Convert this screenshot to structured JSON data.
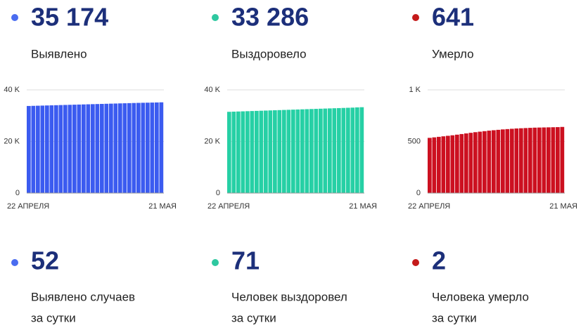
{
  "chart_data": [
    {
      "type": "bar",
      "headline": "35 174",
      "caption": "Выявлено",
      "color": "#3b5bf0",
      "dot_color": "#4a6cf0",
      "categories": [
        "22 АПРЕЛЯ",
        null,
        null,
        null,
        null,
        null,
        null,
        null,
        null,
        null,
        null,
        null,
        null,
        null,
        null,
        null,
        null,
        null,
        null,
        null,
        null,
        null,
        null,
        null,
        null,
        null,
        null,
        null,
        null,
        "21 МАЯ"
      ],
      "values": [
        33760,
        33810,
        33860,
        33910,
        33960,
        34010,
        34060,
        34110,
        34160,
        34210,
        34260,
        34310,
        34360,
        34410,
        34460,
        34510,
        34560,
        34610,
        34660,
        34710,
        34760,
        34810,
        34860,
        34910,
        34960,
        35000,
        35040,
        35080,
        35122,
        35174
      ],
      "ylim": [
        0,
        40000
      ],
      "yticks": [
        0,
        {
          "value": 20000,
          "label": "20 K"
        },
        {
          "value": 40000,
          "label": "40 K"
        }
      ],
      "grid": true
    },
    {
      "type": "bar",
      "headline": "33 286",
      "caption": "Выздоровело",
      "color": "#26d0a5",
      "dot_color": "#2ec8a0",
      "categories": [
        "22 АПРЕЛЯ",
        null,
        null,
        null,
        null,
        null,
        null,
        null,
        null,
        null,
        null,
        null,
        null,
        null,
        null,
        null,
        null,
        null,
        null,
        null,
        null,
        null,
        null,
        null,
        null,
        null,
        null,
        null,
        null,
        "21 МАЯ"
      ],
      "values": [
        31500,
        31560,
        31620,
        31680,
        31740,
        31800,
        31860,
        31920,
        31980,
        32040,
        32100,
        32160,
        32220,
        32280,
        32340,
        32400,
        32460,
        32520,
        32580,
        32640,
        32700,
        32760,
        32820,
        32880,
        32940,
        33000,
        33060,
        33120,
        33215,
        33286
      ],
      "ylim": [
        0,
        40000
      ],
      "yticks": [
        0,
        {
          "value": 20000,
          "label": "20 K"
        },
        {
          "value": 40000,
          "label": "40 K"
        }
      ],
      "grid": true
    },
    {
      "type": "bar",
      "headline": "641",
      "caption": "Умерло",
      "color": "#cc1020",
      "dot_color": "#c41a1a",
      "categories": [
        "22 АПРЕЛЯ",
        null,
        null,
        null,
        null,
        null,
        null,
        null,
        null,
        null,
        null,
        null,
        null,
        null,
        null,
        null,
        null,
        null,
        null,
        null,
        null,
        null,
        null,
        null,
        null,
        null,
        null,
        null,
        null,
        "21 МАЯ"
      ],
      "values": [
        535,
        540,
        545,
        550,
        555,
        560,
        566,
        572,
        578,
        584,
        590,
        595,
        600,
        605,
        609,
        613,
        617,
        620,
        623,
        626,
        628,
        630,
        632,
        634,
        635,
        636,
        637,
        638,
        639,
        641
      ],
      "ylim": [
        0,
        1000
      ],
      "yticks": [
        0,
        500,
        {
          "value": 1000,
          "label": "1 K"
        }
      ],
      "grid": true
    }
  ],
  "daily": [
    {
      "value": "52",
      "lines": [
        "Выявлено случаев",
        "за сутки"
      ]
    },
    {
      "value": "71",
      "lines": [
        "Человек выздоровел",
        "за сутки"
      ]
    },
    {
      "value": "2",
      "lines": [
        "Человека умерло",
        "за сутки"
      ]
    }
  ]
}
